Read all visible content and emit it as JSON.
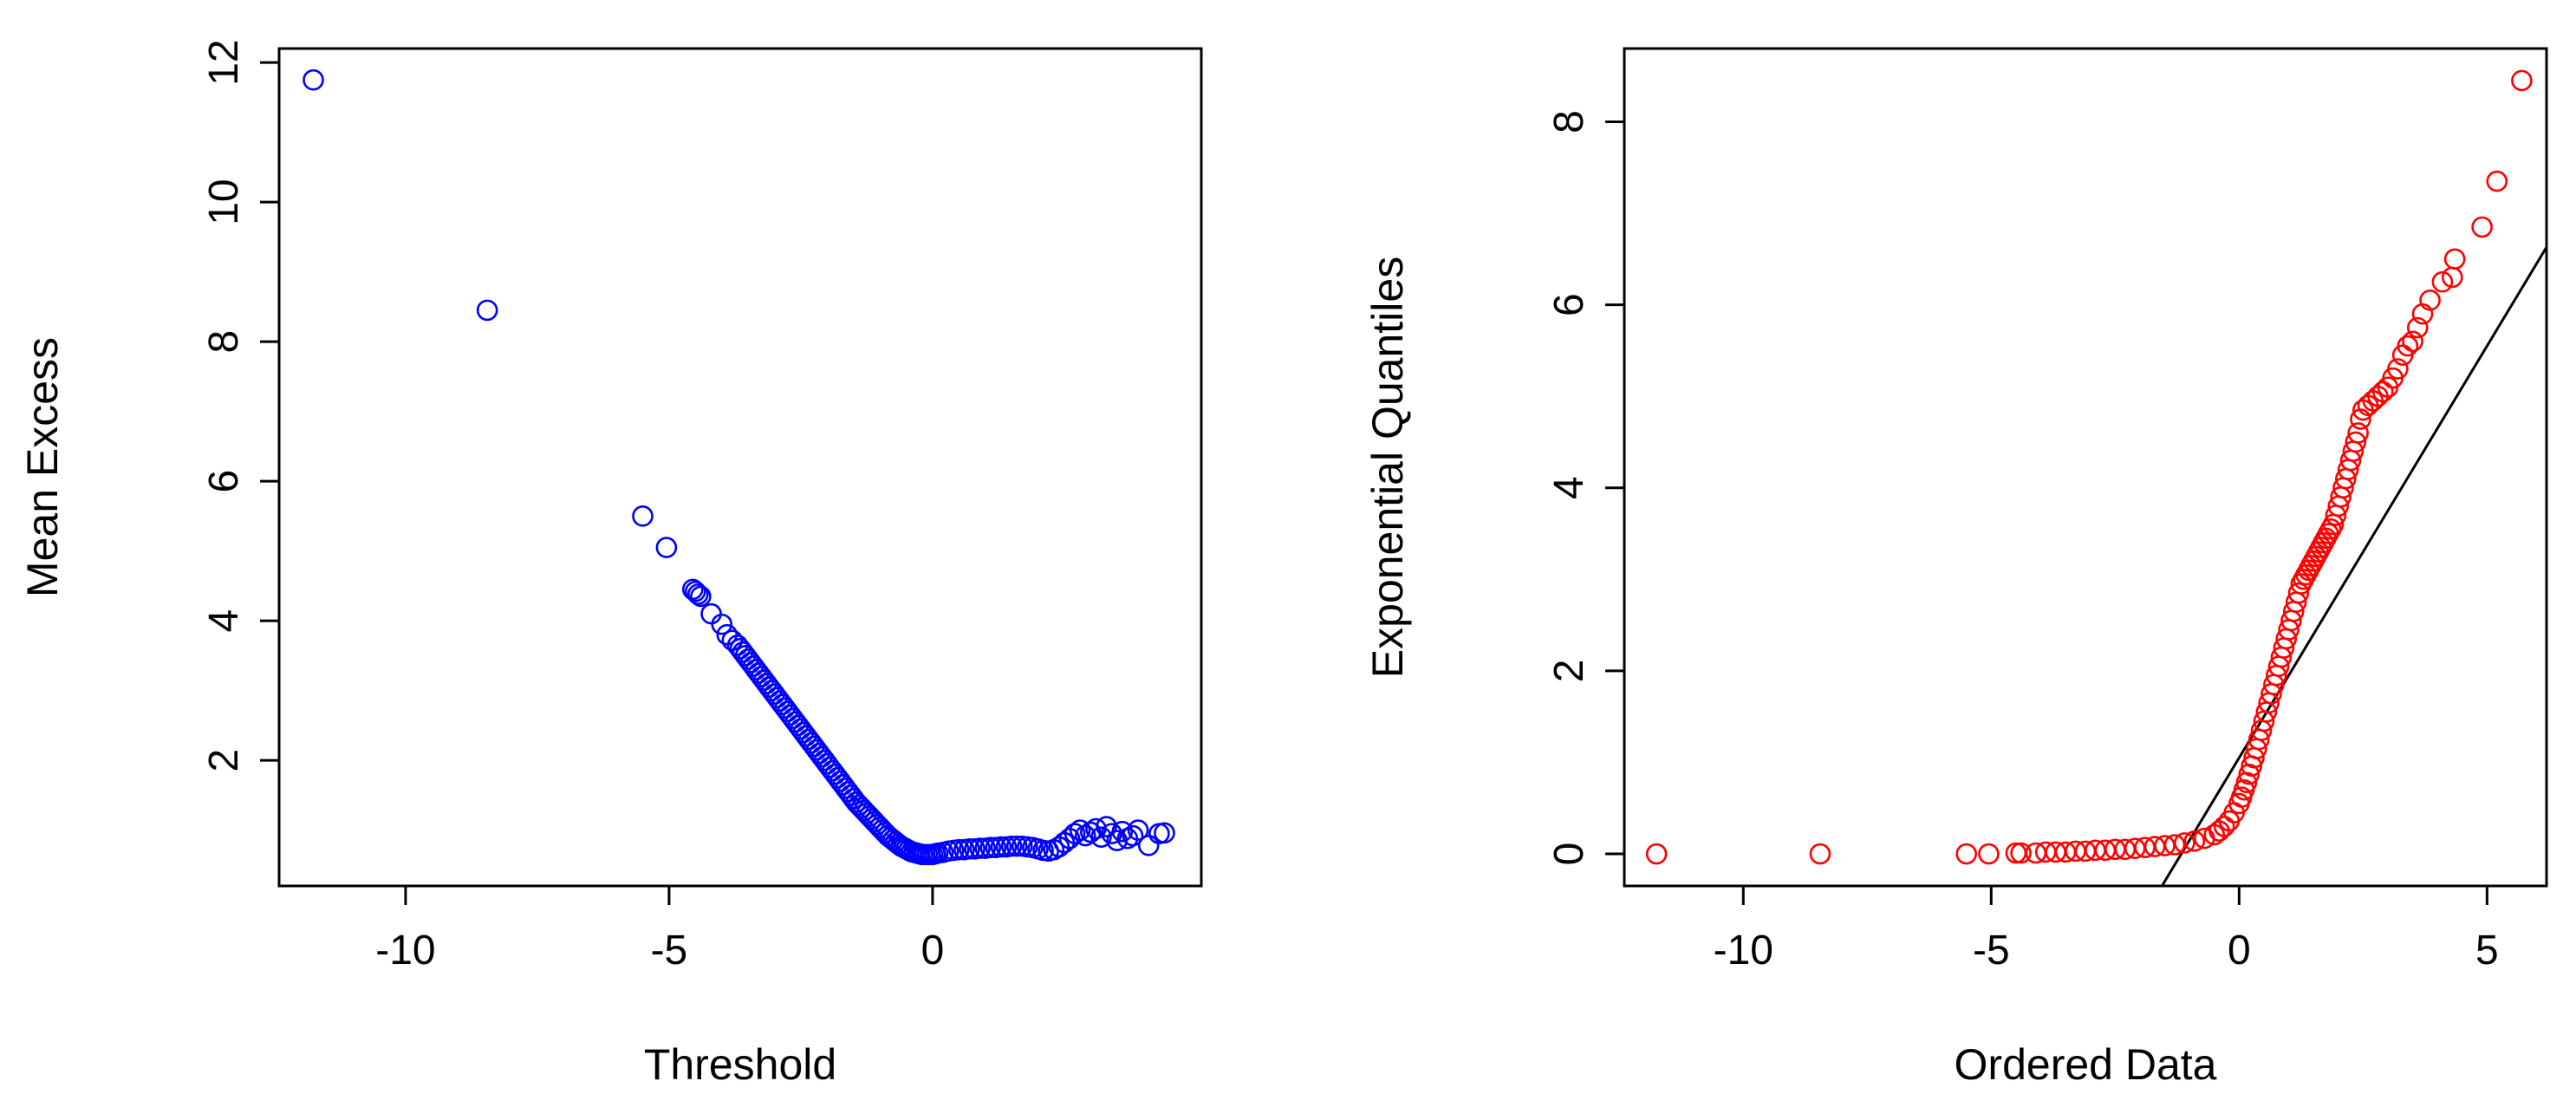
{
  "chart_data": [
    {
      "type": "scatter",
      "title": "",
      "xlabel": "Threshold",
      "ylabel": "Mean Excess",
      "xlim": [
        -12.4,
        5.1
      ],
      "ylim": [
        0.2,
        12.2
      ],
      "xticks": [
        "-10",
        "-5",
        "0"
      ],
      "xtick_values": [
        -10,
        -5,
        0
      ],
      "yticks": [
        "2",
        "4",
        "6",
        "8",
        "10",
        "12"
      ],
      "ytick_values": [
        2,
        4,
        6,
        8,
        10,
        12
      ],
      "grid": false,
      "marker": "open-circle",
      "color": "#0000ff",
      "series": [
        {
          "x": [
            -11.75,
            -8.45,
            -5.5,
            -5.05,
            -4.55,
            -4.5,
            -4.45,
            -4.4,
            -4.2,
            -4.0,
            -3.9,
            -3.8,
            -3.7,
            -3.65,
            -3.6,
            -3.55,
            -3.5,
            -3.45,
            -3.4,
            -3.35,
            -3.3,
            -3.25,
            -3.2,
            -3.15,
            -3.1,
            -3.05,
            -3.0,
            -2.95,
            -2.9,
            -2.85,
            -2.8,
            -2.75,
            -2.7,
            -2.65,
            -2.6,
            -2.55,
            -2.5,
            -2.45,
            -2.4,
            -2.35,
            -2.3,
            -2.25,
            -2.2,
            -2.15,
            -2.1,
            -2.05,
            -2.0,
            -1.95,
            -1.9,
            -1.85,
            -1.8,
            -1.75,
            -1.7,
            -1.65,
            -1.6,
            -1.55,
            -1.5,
            -1.45,
            -1.4,
            -1.35,
            -1.3,
            -1.25,
            -1.2,
            -1.15,
            -1.1,
            -1.05,
            -1.0,
            -0.95,
            -0.9,
            -0.85,
            -0.8,
            -0.75,
            -0.7,
            -0.65,
            -0.6,
            -0.55,
            -0.5,
            -0.45,
            -0.4,
            -0.35,
            -0.3,
            -0.25,
            -0.2,
            -0.15,
            -0.1,
            -0.05,
            0.0,
            0.05,
            0.1,
            0.2,
            0.3,
            0.4,
            0.5,
            0.6,
            0.7,
            0.8,
            0.9,
            1.0,
            1.1,
            1.2,
            1.3,
            1.4,
            1.5,
            1.6,
            1.7,
            1.8,
            1.9,
            2.0,
            2.1,
            2.2,
            2.3,
            2.4,
            2.5,
            2.6,
            2.7,
            2.8,
            2.9,
            3.0,
            3.1,
            3.2,
            3.3,
            3.4,
            3.5,
            3.6,
            3.7,
            3.8,
            3.9,
            4.1,
            4.3,
            4.4
          ],
          "y": [
            11.75,
            8.45,
            5.5,
            5.05,
            4.45,
            4.42,
            4.38,
            4.35,
            4.1,
            3.95,
            3.8,
            3.72,
            3.65,
            3.6,
            3.55,
            3.5,
            3.45,
            3.4,
            3.35,
            3.3,
            3.25,
            3.2,
            3.15,
            3.1,
            3.05,
            3.0,
            2.95,
            2.9,
            2.85,
            2.8,
            2.75,
            2.7,
            2.65,
            2.6,
            2.55,
            2.5,
            2.45,
            2.4,
            2.35,
            2.3,
            2.25,
            2.2,
            2.15,
            2.1,
            2.05,
            2.0,
            1.95,
            1.9,
            1.85,
            1.8,
            1.75,
            1.7,
            1.65,
            1.6,
            1.55,
            1.5,
            1.45,
            1.4,
            1.36,
            1.32,
            1.28,
            1.24,
            1.2,
            1.16,
            1.12,
            1.08,
            1.04,
            1.0,
            0.96,
            0.92,
            0.89,
            0.86,
            0.83,
            0.8,
            0.77,
            0.75,
            0.73,
            0.71,
            0.69,
            0.68,
            0.67,
            0.66,
            0.65,
            0.65,
            0.65,
            0.65,
            0.65,
            0.66,
            0.67,
            0.68,
            0.7,
            0.71,
            0.72,
            0.72,
            0.73,
            0.73,
            0.74,
            0.74,
            0.75,
            0.75,
            0.76,
            0.76,
            0.77,
            0.77,
            0.77,
            0.76,
            0.75,
            0.73,
            0.71,
            0.7,
            0.72,
            0.76,
            0.82,
            0.88,
            0.95,
            1.0,
            0.92,
            0.97,
            1.02,
            0.9,
            1.05,
            0.95,
            0.85,
            0.98,
            0.88,
            0.92,
            1.0,
            0.78,
            0.95,
            0.96
          ]
        }
      ]
    },
    {
      "type": "scatter",
      "title": "",
      "xlabel": "Ordered Data",
      "ylabel": "Exponential Quantiles",
      "xlim": [
        -12.4,
        6.2
      ],
      "ylim": [
        -0.35,
        8.8
      ],
      "xticks": [
        "-10",
        "-5",
        "0",
        "5"
      ],
      "xtick_values": [
        -10,
        -5,
        0,
        5
      ],
      "yticks": [
        "0",
        "2",
        "4",
        "6",
        "8"
      ],
      "ytick_values": [
        0,
        2,
        4,
        6,
        8
      ],
      "grid": false,
      "marker": "open-circle",
      "color": "#ff0000",
      "reference_line": {
        "intercept": 1.05,
        "slope": 0.9,
        "color": "#000000"
      },
      "series": [
        {
          "x": [
            -11.75,
            -8.45,
            -5.5,
            -5.05,
            -4.5,
            -4.4,
            -4.1,
            -3.9,
            -3.7,
            -3.5,
            -3.3,
            -3.1,
            -2.9,
            -2.7,
            -2.5,
            -2.3,
            -2.1,
            -1.9,
            -1.7,
            -1.5,
            -1.3,
            -1.1,
            -0.9,
            -0.7,
            -0.5,
            -0.4,
            -0.3,
            -0.2,
            -0.1,
            0.0,
            0.05,
            0.1,
            0.15,
            0.2,
            0.25,
            0.3,
            0.35,
            0.4,
            0.45,
            0.5,
            0.55,
            0.6,
            0.65,
            0.7,
            0.75,
            0.8,
            0.85,
            0.9,
            0.95,
            1.0,
            1.05,
            1.1,
            1.15,
            1.2,
            1.25,
            1.3,
            1.35,
            1.4,
            1.45,
            1.5,
            1.55,
            1.6,
            1.65,
            1.7,
            1.75,
            1.8,
            1.85,
            1.9,
            1.95,
            2.0,
            2.05,
            2.1,
            2.15,
            2.2,
            2.25,
            2.3,
            2.35,
            2.4,
            2.45,
            2.5,
            2.6,
            2.7,
            2.8,
            2.9,
            3.0,
            3.1,
            3.2,
            3.3,
            3.4,
            3.5,
            3.6,
            3.7,
            3.85,
            4.1,
            4.3,
            4.35,
            4.9,
            5.2,
            5.7
          ],
          "y": [
            0.0,
            0.0,
            0.0,
            0.0,
            0.01,
            0.01,
            0.01,
            0.02,
            0.02,
            0.02,
            0.03,
            0.03,
            0.04,
            0.04,
            0.05,
            0.05,
            0.06,
            0.07,
            0.08,
            0.09,
            0.1,
            0.12,
            0.14,
            0.17,
            0.21,
            0.25,
            0.3,
            0.36,
            0.45,
            0.55,
            0.62,
            0.7,
            0.78,
            0.87,
            0.96,
            1.05,
            1.15,
            1.25,
            1.35,
            1.45,
            1.55,
            1.65,
            1.75,
            1.85,
            1.95,
            2.05,
            2.15,
            2.25,
            2.35,
            2.45,
            2.55,
            2.65,
            2.75,
            2.85,
            2.95,
            3.0,
            3.05,
            3.1,
            3.15,
            3.2,
            3.25,
            3.3,
            3.35,
            3.4,
            3.45,
            3.5,
            3.55,
            3.6,
            3.7,
            3.8,
            3.9,
            4.0,
            4.1,
            4.2,
            4.3,
            4.4,
            4.5,
            4.6,
            4.75,
            4.85,
            4.9,
            4.95,
            5.0,
            5.05,
            5.1,
            5.2,
            5.3,
            5.45,
            5.55,
            5.6,
            5.75,
            5.9,
            6.05,
            6.25,
            6.3,
            6.5,
            6.85,
            7.35,
            8.45
          ]
        }
      ]
    }
  ]
}
